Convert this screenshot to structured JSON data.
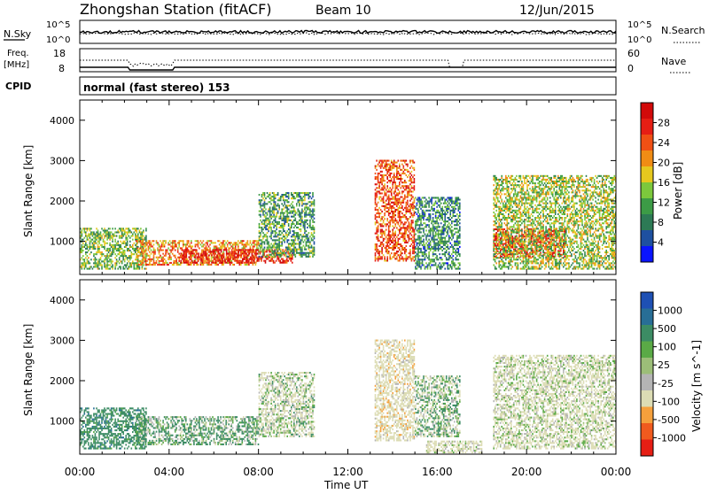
{
  "header": {
    "station": "Zhongshan Station (fitACF)",
    "beam": "Beam 10",
    "date": "12/Jun/2015"
  },
  "strip_labels": {
    "nsky": "N.Sky",
    "nsky_top": "10^5",
    "nsky_bottom": "10^0",
    "nsearch": "N.Search",
    "nsearch_top": "10^5",
    "nsearch_bottom": "10^0",
    "freq_line1": "Freq.",
    "freq_line2": "[MHz]",
    "freq_top": "18",
    "freq_bottom": "8",
    "nave": "Nave",
    "nave_top": "60",
    "nave_bottom": "0",
    "cpid": "CPID",
    "cpid_value": "normal (fast stereo) 153"
  },
  "colors": {
    "power_scale": [
      "#0a14ff",
      "#1e50a0",
      "#2d7a55",
      "#3c9b46",
      "#7cc83c",
      "#e6c81e",
      "#f08c14",
      "#f05014",
      "#e61e14",
      "#d20a0a"
    ],
    "velocity_scale": [
      "#e61e14",
      "#f05a1e",
      "#f5a03c",
      "#dcdcb4",
      "#b4b4b4",
      "#9cbe78",
      "#5aaa46",
      "#3c8c64",
      "#286e96",
      "#1e50b4"
    ]
  },
  "chart_data": [
    {
      "type": "heatmap",
      "title": "Power",
      "xlabel": "",
      "ylabel": "Slant Range [km]",
      "colorbar_label": "Power [dB]",
      "colorbar_ticks": [
        "4",
        "8",
        "12",
        "16",
        "20",
        "24",
        "28"
      ],
      "xlim": [
        "00:00",
        "24:00"
      ],
      "ylim": [
        180,
        4500
      ],
      "y_ticks": [
        "1000",
        "2000",
        "3000",
        "4000"
      ],
      "echo_regions": [
        {
          "t_start": 0.0,
          "t_end": 3.0,
          "range_min": 300,
          "range_max": 1300,
          "power_db": 12
        },
        {
          "t_start": 2.5,
          "t_end": 8.0,
          "range_min": 400,
          "range_max": 1000,
          "power_db": 20
        },
        {
          "t_start": 4.5,
          "t_end": 9.5,
          "range_min": 450,
          "range_max": 800,
          "power_db": 28
        },
        {
          "t_start": 8.0,
          "t_end": 10.5,
          "range_min": 600,
          "range_max": 2200,
          "power_db": 10
        },
        {
          "t_start": 13.2,
          "t_end": 15.0,
          "range_min": 500,
          "range_max": 3000,
          "power_db": 24
        },
        {
          "t_start": 15.0,
          "t_end": 17.0,
          "range_min": 300,
          "range_max": 2100,
          "power_db": 8
        },
        {
          "t_start": 18.5,
          "t_end": 21.7,
          "range_min": 600,
          "range_max": 1300,
          "power_db": 28
        },
        {
          "t_start": 18.5,
          "t_end": 24.0,
          "range_min": 300,
          "range_max": 2600,
          "power_db": 14
        }
      ]
    },
    {
      "type": "heatmap",
      "title": "Velocity",
      "xlabel": "Time UT",
      "ylabel": "Slant Range [km]",
      "colorbar_label": "Velocity [m s^-1]",
      "colorbar_ticks": [
        "-1000",
        "-500",
        "-100",
        "-25",
        "25",
        "100",
        "500",
        "1000"
      ],
      "x_ticks": [
        "00:00",
        "04:00",
        "08:00",
        "12:00",
        "16:00",
        "20:00",
        "00:00"
      ],
      "xlim": [
        "00:00",
        "24:00"
      ],
      "ylim": [
        180,
        4500
      ],
      "y_ticks": [
        "1000",
        "2000",
        "3000",
        "4000"
      ],
      "echo_regions": [
        {
          "t_start": 0.0,
          "t_end": 3.0,
          "range_min": 300,
          "range_max": 1300,
          "velocity": 300
        },
        {
          "t_start": 2.5,
          "t_end": 8.0,
          "range_min": 400,
          "range_max": 1100,
          "velocity": 100
        },
        {
          "t_start": 8.0,
          "t_end": 10.5,
          "range_min": 600,
          "range_max": 2200,
          "velocity": -100
        },
        {
          "t_start": 13.2,
          "t_end": 15.0,
          "range_min": 500,
          "range_max": 3000,
          "velocity": -300
        },
        {
          "t_start": 15.0,
          "t_end": 17.0,
          "range_min": 600,
          "range_max": 2100,
          "velocity": 0
        },
        {
          "t_start": 15.5,
          "t_end": 18.0,
          "range_min": 200,
          "range_max": 500,
          "velocity": -200
        },
        {
          "t_start": 18.5,
          "t_end": 24.0,
          "range_min": 300,
          "range_max": 2600,
          "velocity": -150
        }
      ]
    }
  ]
}
